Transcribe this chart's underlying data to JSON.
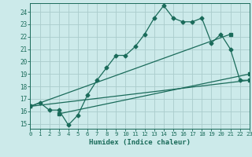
{
  "xlabel": "Humidex (Indice chaleur)",
  "bg_color": "#cceaea",
  "grid_color": "#aacccc",
  "line_color": "#1a6b5a",
  "x_ticks": [
    0,
    1,
    2,
    3,
    4,
    5,
    6,
    7,
    8,
    9,
    10,
    11,
    12,
    13,
    14,
    15,
    16,
    17,
    18,
    19,
    20,
    21,
    22,
    23
  ],
  "y_ticks": [
    15,
    16,
    17,
    18,
    19,
    20,
    21,
    22,
    23,
    24
  ],
  "xlim": [
    0,
    23
  ],
  "ylim": [
    14.6,
    24.7
  ],
  "series1_x": [
    0,
    1,
    2,
    3,
    4,
    5,
    6,
    7,
    8,
    9,
    10,
    11,
    12,
    13,
    14,
    15,
    16,
    17,
    18,
    19,
    20,
    21,
    22,
    23
  ],
  "series1_y": [
    16.4,
    16.7,
    16.1,
    16.1,
    14.9,
    15.7,
    17.3,
    18.5,
    19.5,
    20.5,
    20.5,
    21.2,
    22.2,
    23.5,
    24.5,
    23.5,
    23.2,
    23.2,
    23.5,
    21.5,
    22.2,
    21.0,
    18.5,
    18.5
  ],
  "line2_x": [
    0,
    21
  ],
  "line2_y": [
    16.4,
    22.2
  ],
  "line3_x": [
    0,
    23
  ],
  "line3_y": [
    16.4,
    18.5
  ],
  "line4_x": [
    3,
    23
  ],
  "line4_y": [
    15.8,
    19.0
  ]
}
